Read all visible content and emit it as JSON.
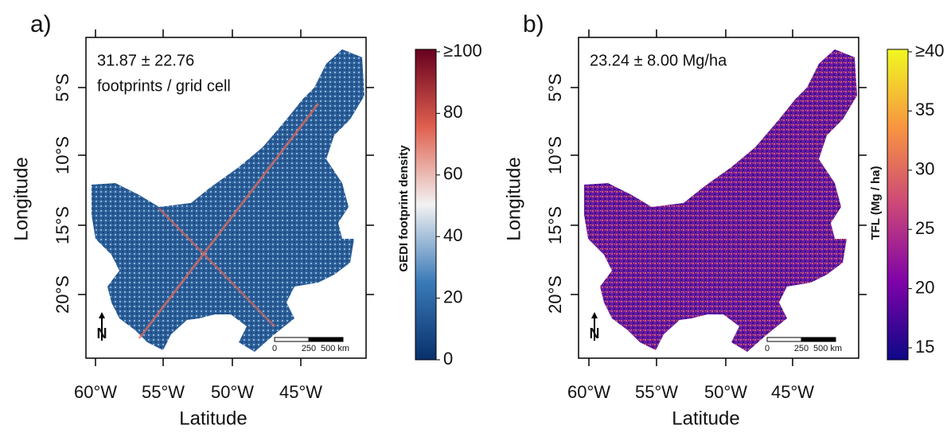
{
  "panels": [
    {
      "label": "a)",
      "annotation": [
        "31.87 ± 22.76",
        "footprints / grid cell"
      ],
      "y_axis_title": "Longitude",
      "x_axis_title": "Latitude",
      "y_ticks": [
        "5°S",
        "10°S",
        "15°S",
        "20°S"
      ],
      "x_ticks": [
        "60°W",
        "55°W",
        "50°W",
        "45°W"
      ],
      "colorbar": {
        "title": "GEDI footprint density",
        "ticks": [
          "≥100",
          "80",
          "60",
          "40",
          "20",
          "0"
        ]
      },
      "scale_bar": [
        "0",
        "250",
        "500 km"
      ]
    },
    {
      "label": "b)",
      "annotation": [
        "23.24 ± 8.00 Mg/ha"
      ],
      "y_axis_title": "Longitude",
      "x_axis_title": "Latitude",
      "y_ticks": [
        "5°S",
        "10°S",
        "15°S",
        "20°S"
      ],
      "x_ticks": [
        "60°W",
        "55°W",
        "50°W",
        "45°W"
      ],
      "colorbar": {
        "title": "TFL (Mg / ha)",
        "ticks": [
          "≥40",
          "35",
          "30",
          "25",
          "20",
          "15"
        ]
      },
      "scale_bar": [
        "0",
        "250",
        "500 km"
      ]
    }
  ]
}
